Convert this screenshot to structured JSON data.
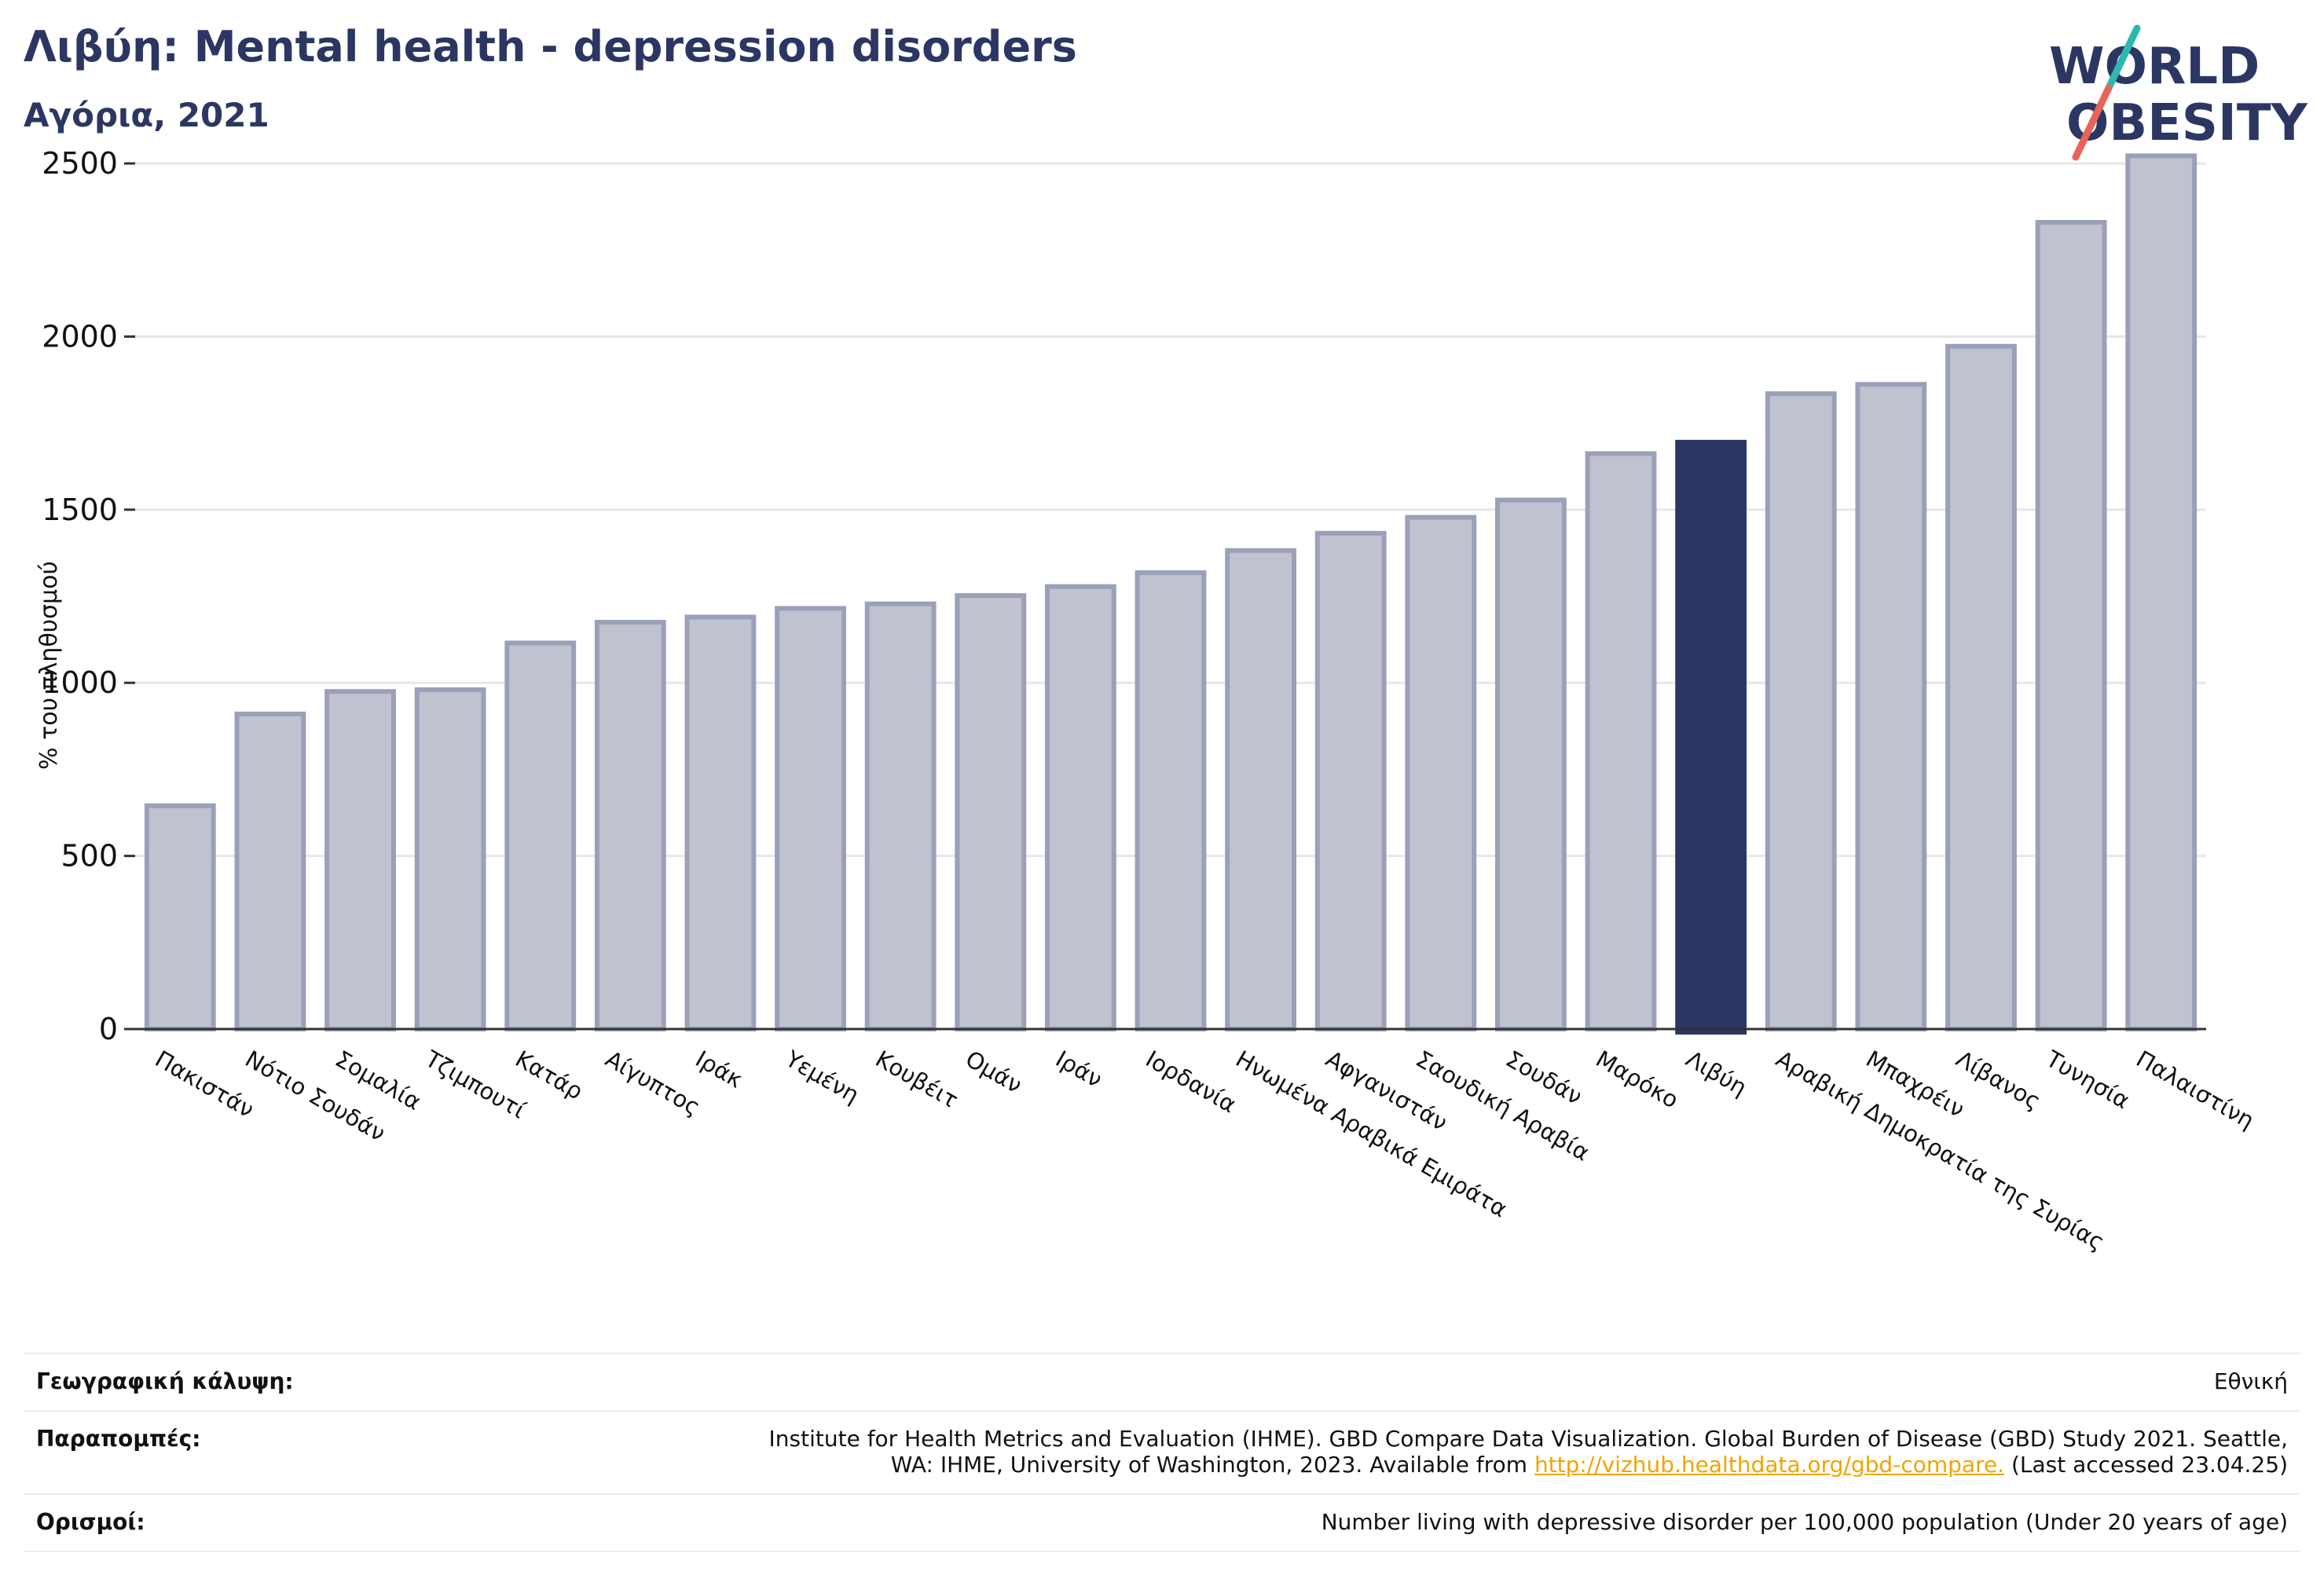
{
  "header": {
    "title": "Λιβύη: Mental health - depression disorders",
    "subtitle": "Αγόρια, 2021"
  },
  "logo": {
    "line1": "WORLD",
    "line2": "OBESITY",
    "brand_color": "#2b3663",
    "accent_teal": "#2bb8b0",
    "accent_red": "#e8645a"
  },
  "colors": {
    "bar": "#bfc2cf",
    "bar_stroke": "#9aa0b8",
    "highlight": "#2b3663",
    "grid": "#e6e6ec",
    "axis": "#333333"
  },
  "chart_data": {
    "type": "bar",
    "ylabel": "% του πληθυσμού",
    "ylim": [
      0,
      2600
    ],
    "yticks": [
      0,
      500,
      1000,
      1500,
      2000,
      2500
    ],
    "grid": true,
    "highlight": "Λιβύη",
    "categories": [
      "Πακιστάν",
      "Νότιο Σουδάν",
      "Σομαλία",
      "Τζιμπουτί",
      "Κατάρ",
      "Αίγυπτος",
      "Ιράκ",
      "Υεμένη",
      "Κουβέιτ",
      "Ομάν",
      "Ιράν",
      "Ιορδανία",
      "Ηνωμένα Αραβικά Εμιράτα",
      "Αφγανιστάν",
      "Σαουδική Αραβία",
      "Σουδάν",
      "Μαρόκο",
      "Λιβύη",
      "Αραβική Δημοκρατία της Συρίας",
      "Μπαχρέιν",
      "Λίβανος",
      "Τυνησία",
      "Παλαιστίνη"
    ],
    "values": [
      645,
      910,
      975,
      980,
      1115,
      1175,
      1190,
      1215,
      1228,
      1252,
      1278,
      1318,
      1382,
      1432,
      1478,
      1528,
      1662,
      1695,
      1835,
      1862,
      1972,
      2330,
      2522
    ]
  },
  "meta": {
    "coverage_label": "Γεωγραφική κάλυψη:",
    "coverage_value": "Εθνική",
    "refs_label": "Παραπομπές:",
    "refs_line1": "Institute for Health Metrics and Evaluation (IHME). GBD Compare Data Visualization. Global Burden of Disease (GBD) Study 2021. Seattle,",
    "refs_line2_pre": "WA: IHME, University of Washington, 2023. Available from ",
    "refs_link": "http://vizhub.healthdata.org/gbd-compare.",
    "refs_line2_post": " (Last accessed 23.04.25)",
    "defs_label": "Ορισμοί:",
    "defs_value": "Number living with depressive disorder per 100,000 population (Under 20 years of age)"
  }
}
